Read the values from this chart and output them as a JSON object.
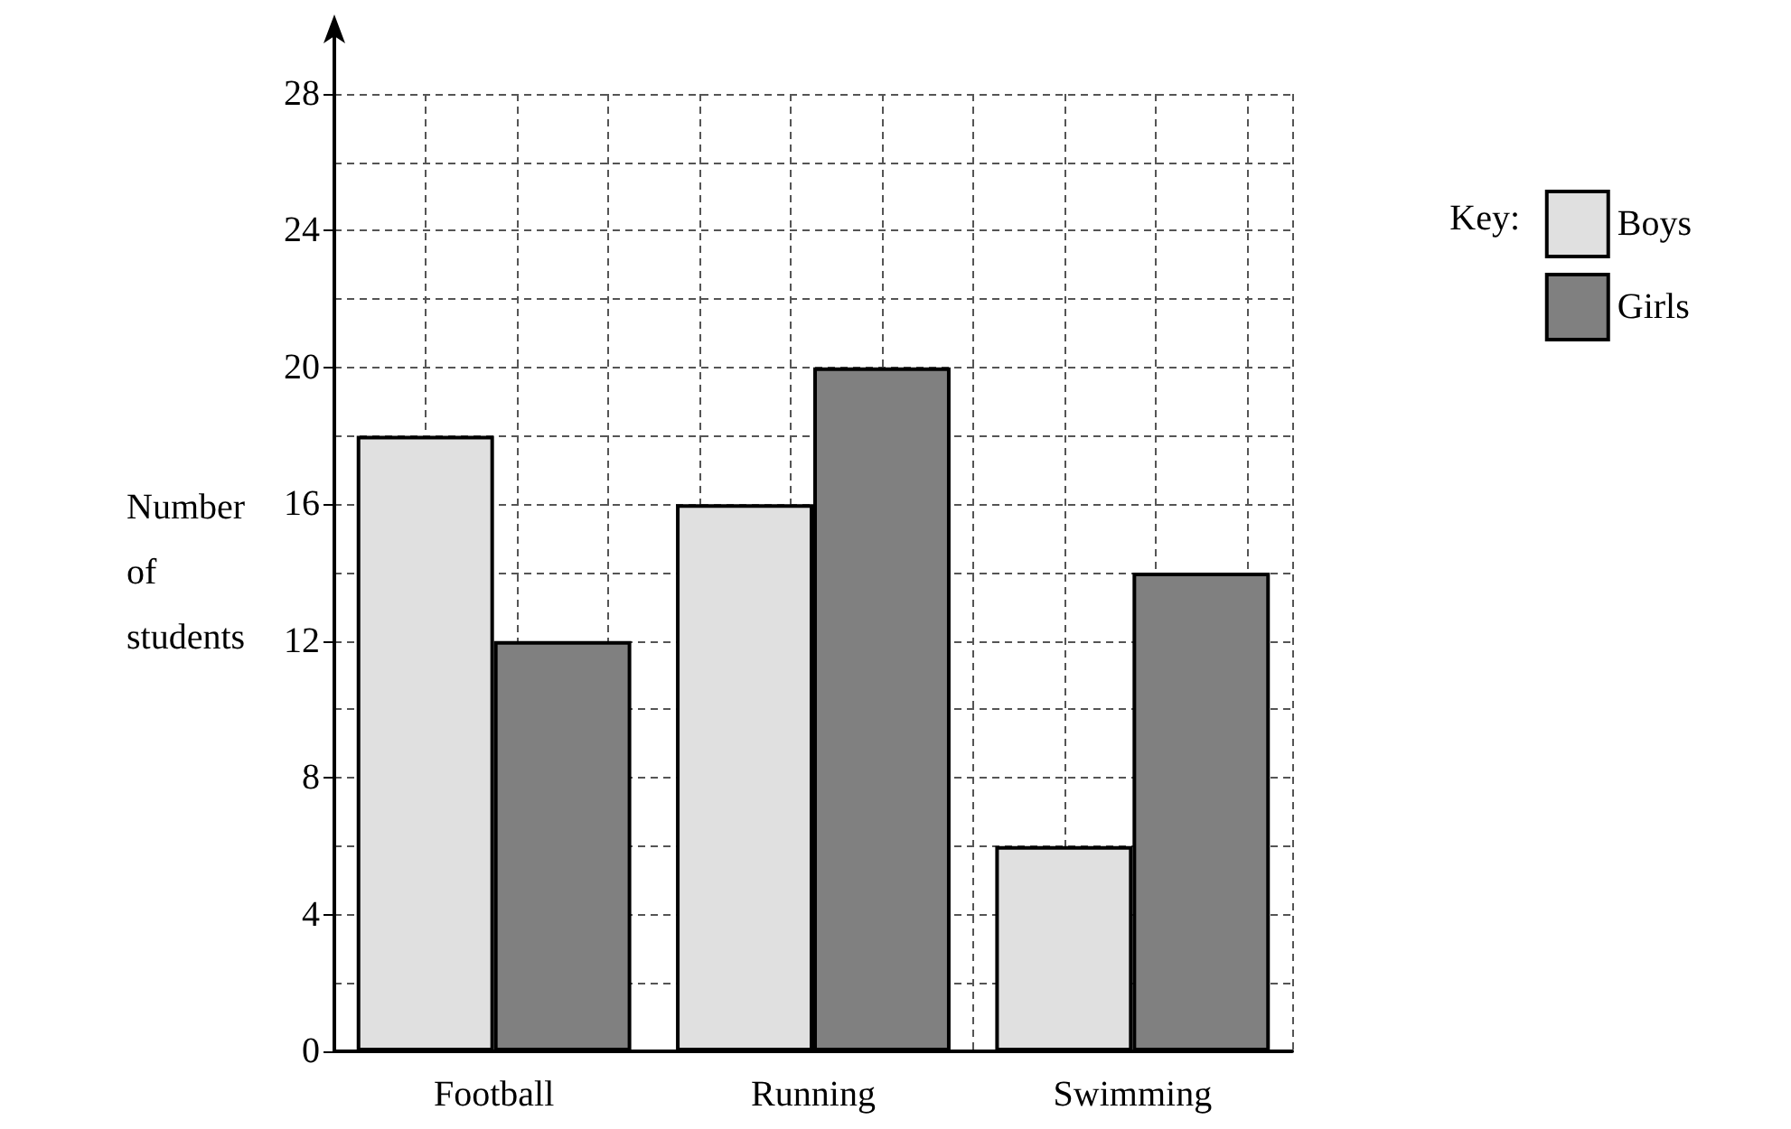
{
  "chart_data": {
    "type": "bar",
    "ylabel": "Number of students",
    "legend_title": "Key:",
    "categories": [
      "Football",
      "Running",
      "Swimming"
    ],
    "series": [
      {
        "name": "Boys",
        "color": "#e0e0e0",
        "values": [
          18,
          16,
          6
        ]
      },
      {
        "name": "Girls",
        "color": "#808080",
        "values": [
          12,
          20,
          14
        ]
      }
    ],
    "ylim": [
      0,
      28
    ],
    "yticks": [
      0,
      4,
      8,
      12,
      16,
      20,
      24,
      28
    ],
    "grid": true,
    "legend": "top right"
  }
}
